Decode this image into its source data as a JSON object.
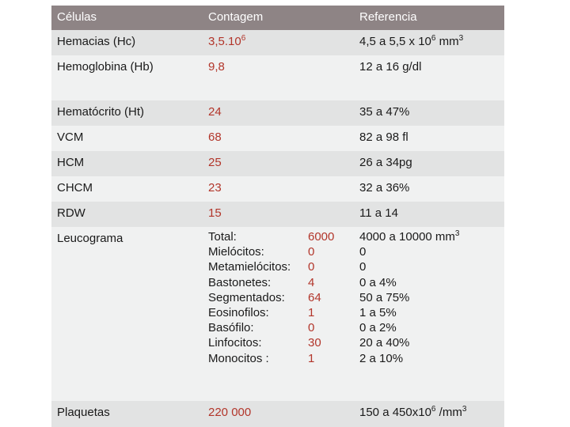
{
  "header": {
    "col1": "Células",
    "col2": "Contagem",
    "col3": "Referencia"
  },
  "rows": [
    {
      "name": "Hemacias (Hc)",
      "value": "3,5.10",
      "value_sup": "6",
      "ref": "4,5 a 5,5 x 10",
      "ref_sup": "6",
      "ref_suffix": " mm",
      "ref_sup2": "3"
    },
    {
      "name": "Hemoglobina (Hb)",
      "value": "9,8",
      "ref": "12 a 16 g/dl"
    },
    {
      "name": "Hematócrito (Ht)",
      "value": "24",
      "ref": "35 a 47%"
    },
    {
      "name": "VCM",
      "value": "68",
      "ref": "82 a 98 fl"
    },
    {
      "name": "HCM",
      "value": "25",
      "ref": "26 a 34pg"
    },
    {
      "name": "CHCM",
      "value": "23",
      "ref": "32 a 36%"
    },
    {
      "name": "RDW",
      "value": "15",
      "ref": "11 a 14"
    }
  ],
  "leucograma": {
    "name": "Leucograma",
    "labels": [
      "Total:",
      "Mielócitos:",
      "Metamielócitos:",
      "Bastonetes:",
      "Segmentados:",
      "Eosinofilos:",
      "Basófilo:",
      "Linfocitos:",
      "Monocitos :"
    ],
    "values": [
      "6000",
      "0",
      "0",
      "4",
      "64",
      "1",
      "0",
      "30",
      "1"
    ],
    "refs": [
      "4000 a 10000 mm",
      "0",
      "0",
      "0 a 4%",
      "50 a 75%",
      "1 a 5%",
      "0 a 2%",
      "20 a 40%",
      "2 a 10%"
    ],
    "total_ref_sup": "3"
  },
  "plaquetas": {
    "name": "Plaquetas",
    "value": "220 000",
    "ref": "150 a 450x10",
    "ref_sup": "6",
    "ref_suffix": " /mm",
    "ref_sup2": "3"
  },
  "colors": {
    "header_bg": "#8e8485",
    "row_alt_bg": "#e2e3e3",
    "row_plain_bg": "#f0f1f1",
    "value_red": "#b2352a"
  }
}
